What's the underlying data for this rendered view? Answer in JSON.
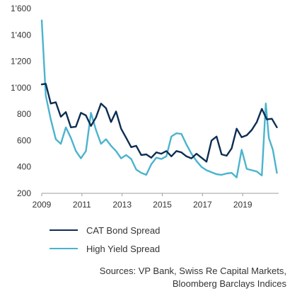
{
  "chart_data": {
    "type": "line",
    "y_ticks": [
      "1'600",
      "1'400",
      "1'200",
      "1'000",
      "800",
      "600",
      "400",
      "200"
    ],
    "y_tick_values": [
      1600,
      1400,
      1200,
      1000,
      800,
      600,
      400,
      200
    ],
    "x_ticks": [
      "2009",
      "2011",
      "2013",
      "2015",
      "2017",
      "2019"
    ],
    "x_tick_values": [
      2009,
      2011,
      2013,
      2015,
      2017,
      2019
    ],
    "xlim": [
      2009,
      2021
    ],
    "ylim": [
      200,
      1600
    ],
    "grid": false,
    "legend_position": "bottom-left",
    "series": [
      {
        "name": "CAT Bond Spread",
        "color": "#0d2d52",
        "x": [
          2009.0,
          2009.2,
          2009.45,
          2009.7,
          2009.95,
          2010.2,
          2010.45,
          2010.7,
          2010.95,
          2011.2,
          2011.45,
          2011.7,
          2011.95,
          2012.2,
          2012.45,
          2012.7,
          2012.95,
          2013.2,
          2013.45,
          2013.7,
          2013.95,
          2014.2,
          2014.45,
          2014.7,
          2014.95,
          2015.2,
          2015.45,
          2015.7,
          2015.95,
          2016.2,
          2016.45,
          2016.7,
          2016.95,
          2017.2,
          2017.45,
          2017.7,
          2017.95,
          2018.2,
          2018.45,
          2018.7,
          2018.95,
          2019.2,
          2019.45,
          2019.7,
          2019.95,
          2020.2,
          2020.45,
          2020.7
        ],
        "values": [
          1025,
          1030,
          880,
          890,
          780,
          815,
          700,
          705,
          810,
          790,
          710,
          775,
          880,
          845,
          740,
          820,
          690,
          620,
          550,
          560,
          490,
          495,
          470,
          510,
          500,
          520,
          480,
          520,
          510,
          480,
          465,
          500,
          470,
          440,
          600,
          630,
          495,
          485,
          540,
          690,
          625,
          640,
          680,
          740,
          840,
          760,
          765,
          700
        ]
      },
      {
        "name": "High Yield Spread",
        "color": "#4bb3cf",
        "x": [
          2009.0,
          2009.2,
          2009.45,
          2009.7,
          2009.95,
          2010.2,
          2010.45,
          2010.7,
          2010.95,
          2011.2,
          2011.45,
          2011.7,
          2011.95,
          2012.2,
          2012.45,
          2012.7,
          2012.95,
          2013.2,
          2013.45,
          2013.7,
          2013.95,
          2014.2,
          2014.45,
          2014.7,
          2014.95,
          2015.2,
          2015.45,
          2015.7,
          2015.95,
          2016.2,
          2016.45,
          2016.7,
          2016.95,
          2017.2,
          2017.45,
          2017.7,
          2017.95,
          2018.2,
          2018.45,
          2018.7,
          2018.95,
          2019.2,
          2019.45,
          2019.7,
          2019.95,
          2020.15,
          2020.3,
          2020.5,
          2020.7
        ],
        "values": [
          1510,
          940,
          760,
          610,
          575,
          700,
          620,
          520,
          465,
          520,
          810,
          680,
          575,
          610,
          560,
          520,
          465,
          490,
          460,
          380,
          355,
          340,
          420,
          470,
          460,
          480,
          630,
          655,
          650,
          570,
          500,
          445,
          400,
          375,
          360,
          345,
          340,
          350,
          355,
          320,
          530,
          385,
          375,
          365,
          335,
          880,
          620,
          530,
          355
        ]
      }
    ]
  },
  "legend": {
    "items": [
      {
        "label": "CAT Bond Spread",
        "color": "#0d2d52"
      },
      {
        "label": "High Yield Spread",
        "color": "#4bb3cf"
      }
    ]
  },
  "source": {
    "line1": "Sources: VP Bank, Swiss Re Capital Markets,",
    "line2": "Bloomberg Barclays Indices"
  }
}
